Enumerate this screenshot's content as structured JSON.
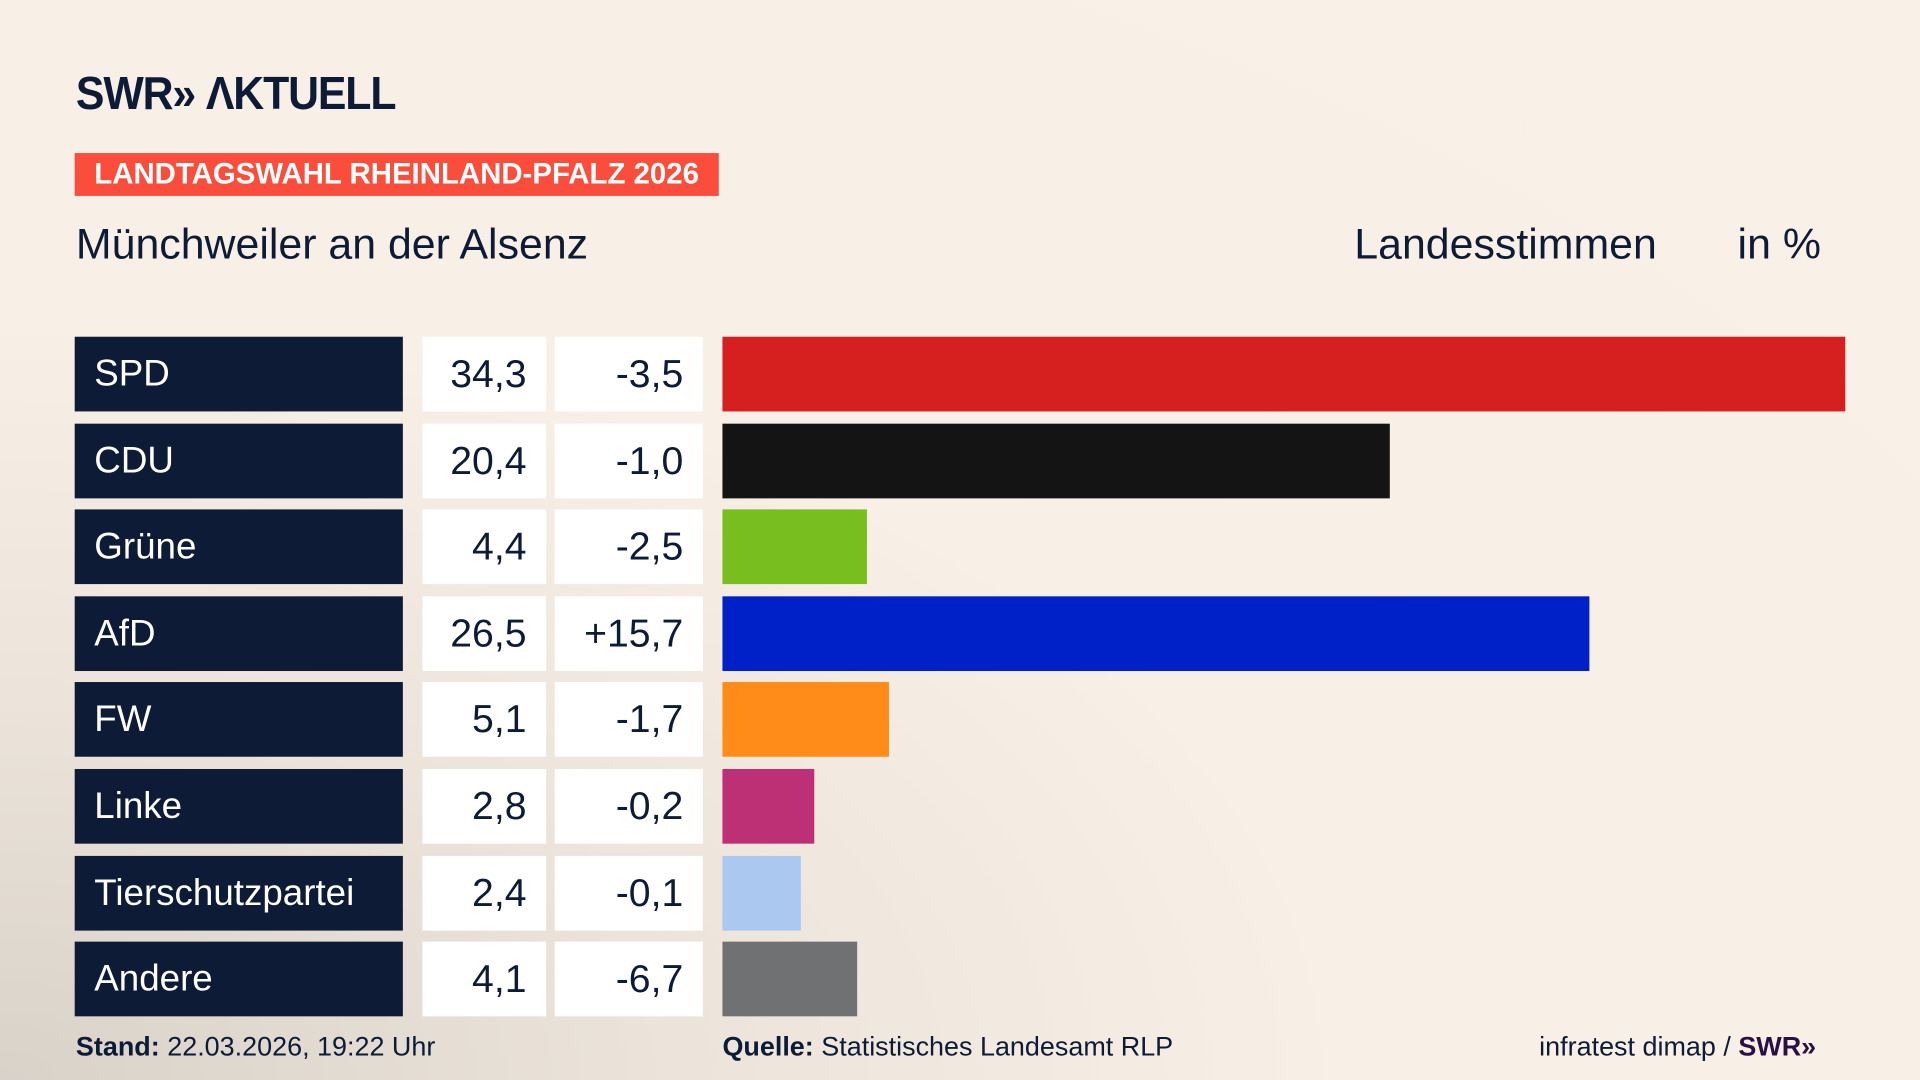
{
  "brand": {
    "logo": "SWR» ΛKTUELL"
  },
  "badge": "LANDTAGSWAHL RHEINLAND-PFALZ 2026",
  "region": "Münchweiler an der Alsenz",
  "header": {
    "type": "Landesstimmen",
    "unit": "in %"
  },
  "chart_data": {
    "type": "bar",
    "orientation": "horizontal",
    "categories": [
      "SPD",
      "CDU",
      "Grüne",
      "AfD",
      "FW",
      "Linke",
      "Tierschutzpartei",
      "Andere"
    ],
    "values": [
      34.3,
      20.4,
      4.4,
      26.5,
      5.1,
      2.8,
      2.4,
      4.1
    ],
    "value_labels": [
      "34,3",
      "20,4",
      "4,4",
      "26,5",
      "5,1",
      "2,8",
      "2,4",
      "4,1"
    ],
    "diff_labels": [
      "-3,5",
      "-1,0",
      "-2,5",
      "+15,7",
      "-1,7",
      "-0,2",
      "-0,1",
      "-6,7"
    ],
    "colors": [
      "#d62020",
      "#141414",
      "#78be1e",
      "#0021c8",
      "#ff8c19",
      "#bd3075",
      "#aac8f0",
      "#707173"
    ]
  },
  "footer": {
    "stand_label": "Stand:",
    "stand": "22.03.2026, 19:22 Uhr",
    "quelle_label": "Quelle:",
    "quelle": "Statistisches Landesamt RLP",
    "credit": "infratest dimap /",
    "credit_logo": "SWR»"
  }
}
